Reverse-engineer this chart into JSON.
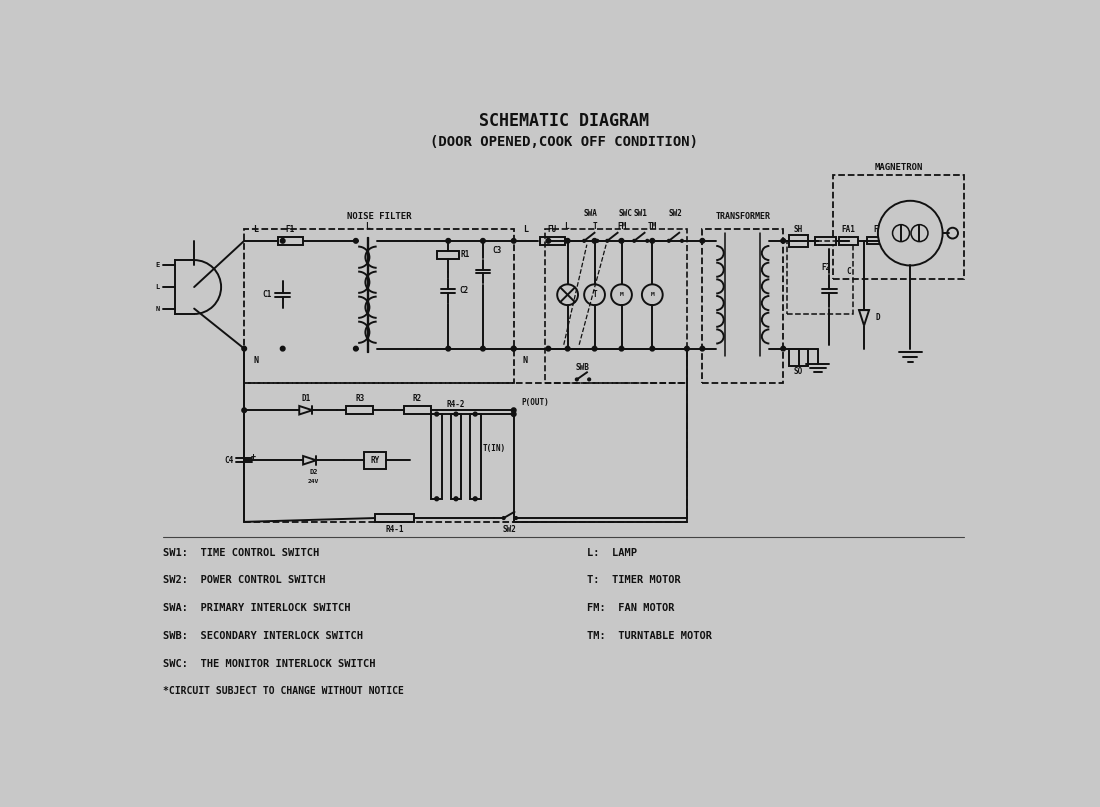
{
  "title1": "SCHEMATIC DIAGRAM",
  "title2": "(DOOR OPENED,COOK OFF CONDITION)",
  "bg_color": "#c8c8c8",
  "line_color": "#111111",
  "legend_left": [
    "SW1:  TIME CONTROL SWITCH",
    "SW2:  POWER CONTROL SWITCH",
    "SWA:  PRIMARY INTERLOCK SWITCH",
    "SWB:  SECONDARY INTERLOCK SWITCH",
    "SWC:  THE MONITOR INTERLOCK SWITCH"
  ],
  "legend_right": [
    "L:  LAMP",
    "T:  TIMER MOTOR",
    "FM:  FAN MOTOR",
    "TM:  TURNTABLE MOTOR"
  ],
  "footnote": "*CIRCUIT SUBJECT TO CHANGE WITHOUT NOTICE",
  "label_noise_filter": "NOISE FILTER",
  "label_transformer": "TRANSFORMER",
  "label_magnetron": "MAGNETRON"
}
